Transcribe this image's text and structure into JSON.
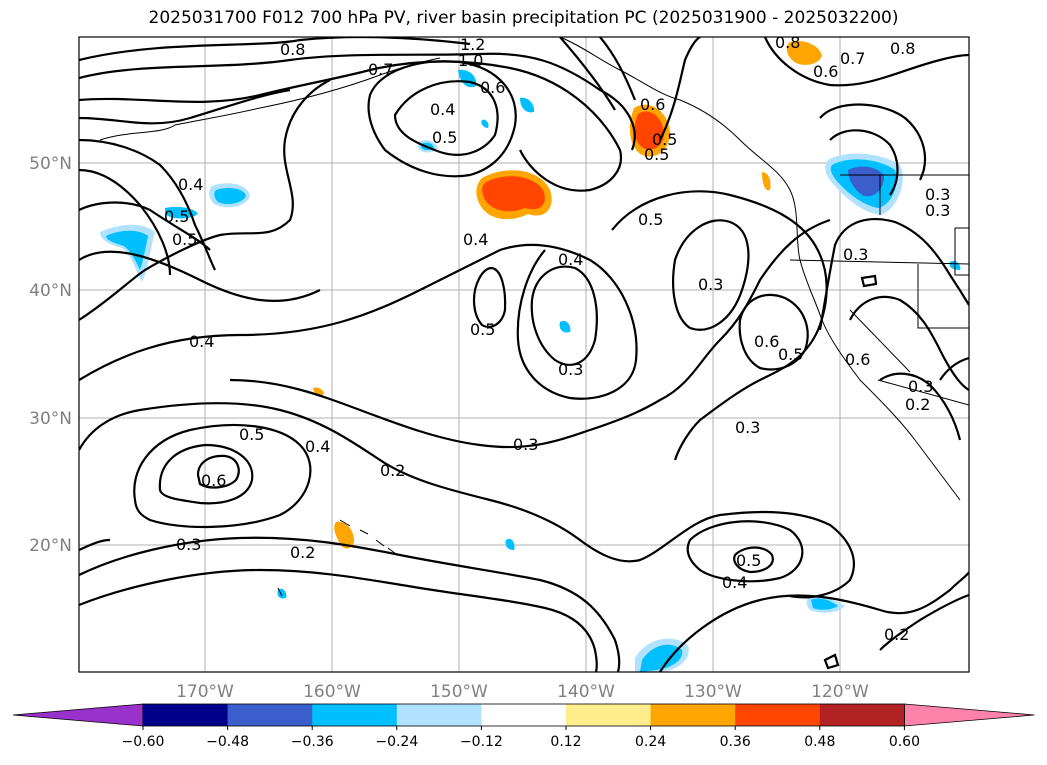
{
  "title": "2025031700 F012 700 hPa PV, river basin precipitation PC (2025031900 - 2025032200)",
  "map": {
    "lon_labels": [
      "170°W",
      "160°W",
      "150°W",
      "140°W",
      "130°W",
      "120°W"
    ],
    "lat_labels": [
      "20°N",
      "30°N",
      "40°N",
      "50°N"
    ],
    "contour_labels": [
      "0.8",
      "1.2",
      "1.0",
      "0.7",
      "0.6",
      "0.4",
      "0.5",
      "0.4",
      "0.5",
      "0.5",
      "0.4",
      "0.4",
      "0.5",
      "0.4",
      "0.5",
      "0.3",
      "0.6",
      "0.5",
      "0.3",
      "0.3",
      "0.3",
      "0.6",
      "0.5",
      "0.4",
      "0.5",
      "0.3",
      "0.2",
      "0.3",
      "0.5",
      "0.4",
      "0.2",
      "0.6",
      "0.5",
      "0.3",
      "0.2",
      "0.8",
      "0.7",
      "0.6",
      "0.8",
      "0.3",
      "0.3",
      "0.6",
      "0.2"
    ]
  },
  "colorbar": {
    "ticks": [
      "−0.60",
      "−0.48",
      "−0.36",
      "−0.24",
      "−0.12",
      "0.12",
      "0.24",
      "0.36",
      "0.48",
      "0.60"
    ],
    "colors": [
      "#9932cc",
      "#00008b",
      "#3a5fcd",
      "#00bfff",
      "#b0e2ff",
      "#ffffff",
      "#ffec8b",
      "#ffa500",
      "#ff4500",
      "#b22222",
      "#ff82ab"
    ]
  }
}
